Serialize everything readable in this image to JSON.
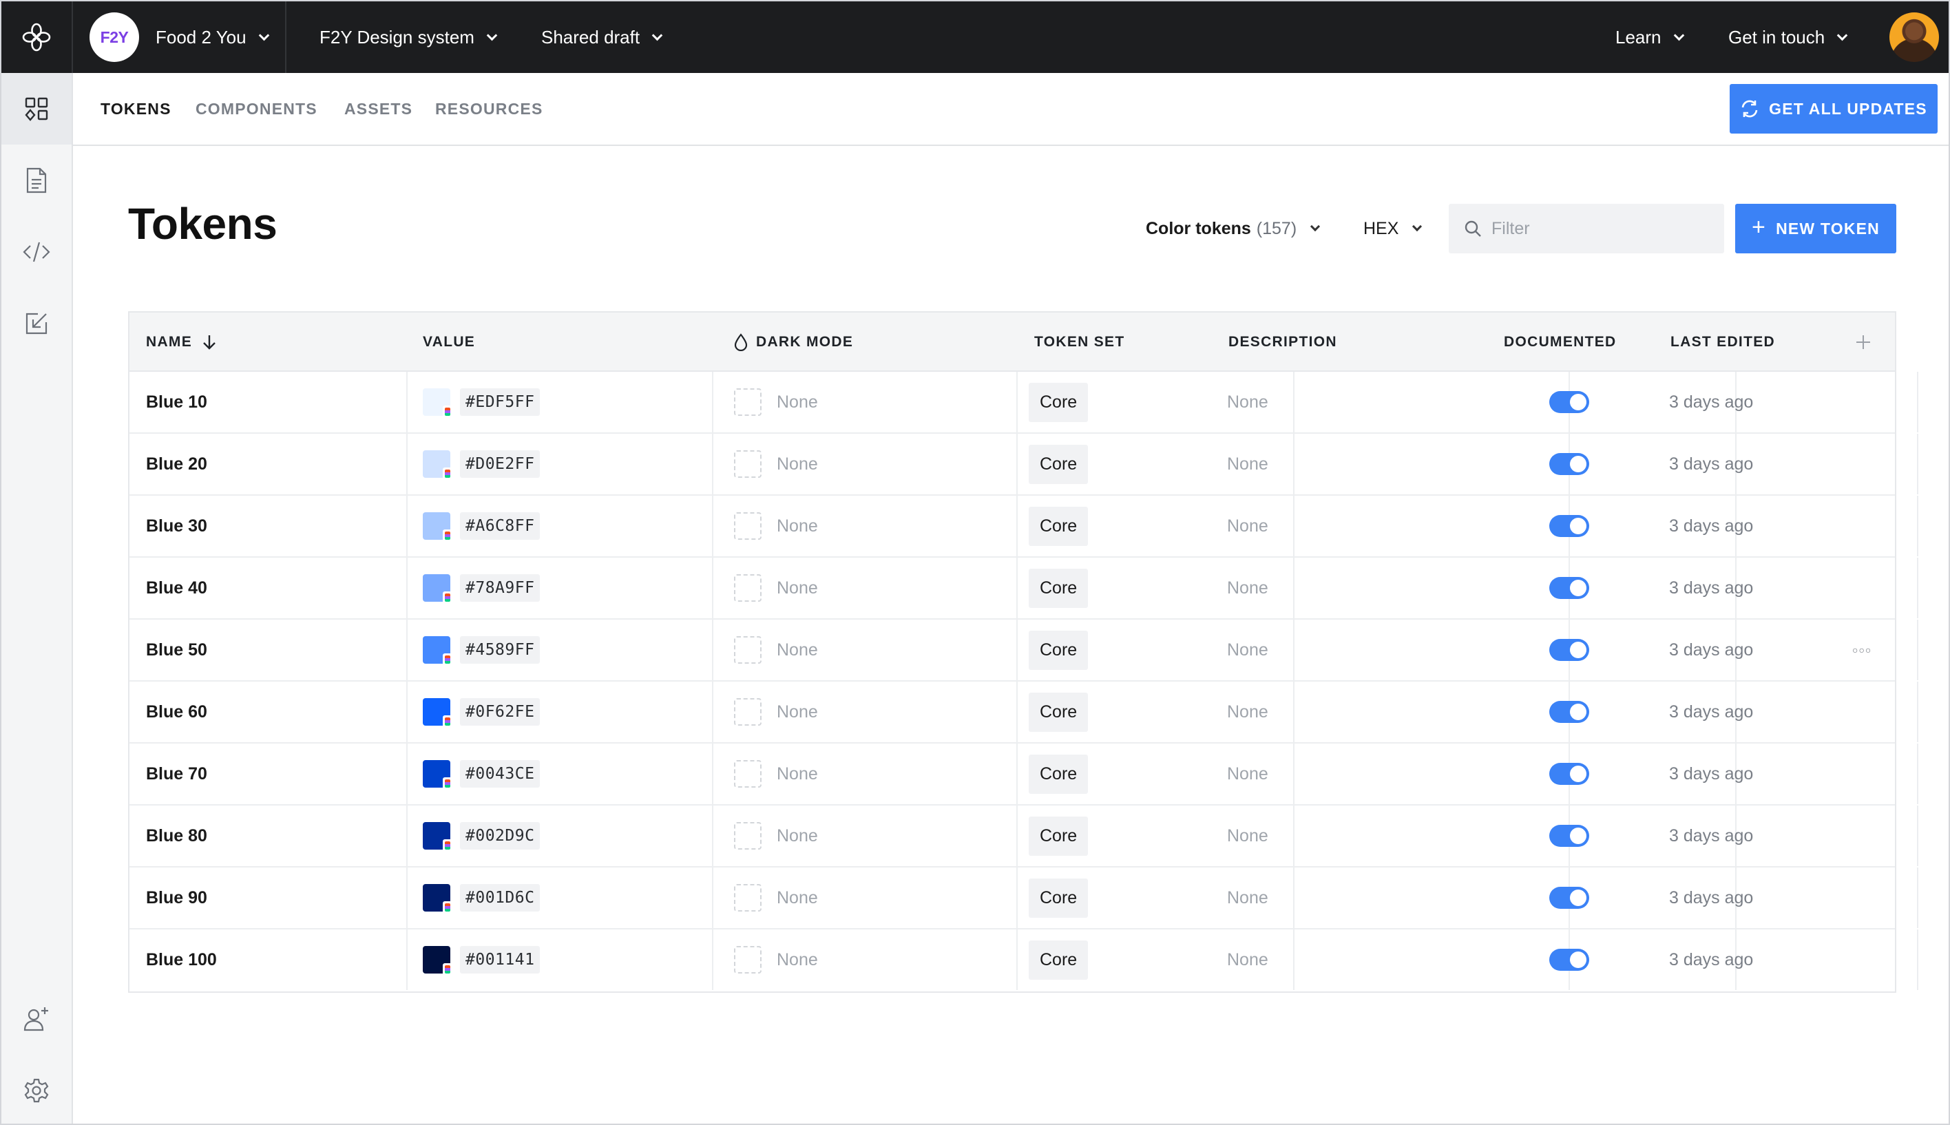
{
  "topbar": {
    "workspace": "Food 2 You",
    "workspace_badge": "F2Y",
    "project": "F2Y Design system",
    "branch": "Shared draft",
    "learn": "Learn",
    "contact": "Get in touch"
  },
  "subnav": {
    "tabs": [
      "TOKENS",
      "COMPONENTS",
      "ASSETS",
      "RESOURCES"
    ],
    "active_tab": "TOKENS",
    "get_updates": "GET ALL UPDATES"
  },
  "main": {
    "title": "Tokens",
    "token_type": "Color tokens",
    "token_count": "(157)",
    "format": "HEX",
    "filter_placeholder": "Filter",
    "new_token": "NEW TOKEN"
  },
  "table": {
    "columns": {
      "name": "NAME",
      "value": "VALUE",
      "dark_mode": "DARK MODE",
      "token_set": "TOKEN SET",
      "description": "DESCRIPTION",
      "documented": "DOCUMENTED",
      "last_edited": "LAST EDITED"
    },
    "rows": [
      {
        "name": "Blue 10",
        "hex": "#EDF5FF",
        "dark_mode": "None",
        "token_set": "Core",
        "description": "None",
        "documented": true,
        "last_edited": "3 days ago"
      },
      {
        "name": "Blue 20",
        "hex": "#D0E2FF",
        "dark_mode": "None",
        "token_set": "Core",
        "description": "None",
        "documented": true,
        "last_edited": "3 days ago"
      },
      {
        "name": "Blue 30",
        "hex": "#A6C8FF",
        "dark_mode": "None",
        "token_set": "Core",
        "description": "None",
        "documented": true,
        "last_edited": "3 days ago"
      },
      {
        "name": "Blue 40",
        "hex": "#78A9FF",
        "dark_mode": "None",
        "token_set": "Core",
        "description": "None",
        "documented": true,
        "last_edited": "3 days ago"
      },
      {
        "name": "Blue 50",
        "hex": "#4589FF",
        "dark_mode": "None",
        "token_set": "Core",
        "description": "None",
        "documented": true,
        "last_edited": "3 days ago",
        "hovered": true
      },
      {
        "name": "Blue 60",
        "hex": "#0F62FE",
        "dark_mode": "None",
        "token_set": "Core",
        "description": "None",
        "documented": true,
        "last_edited": "3 days ago"
      },
      {
        "name": "Blue 70",
        "hex": "#0043CE",
        "dark_mode": "None",
        "token_set": "Core",
        "description": "None",
        "documented": true,
        "last_edited": "3 days ago"
      },
      {
        "name": "Blue 80",
        "hex": "#002D9C",
        "dark_mode": "None",
        "token_set": "Core",
        "description": "None",
        "documented": true,
        "last_edited": "3 days ago"
      },
      {
        "name": "Blue 90",
        "hex": "#001D6C",
        "dark_mode": "None",
        "token_set": "Core",
        "description": "None",
        "documented": true,
        "last_edited": "3 days ago"
      },
      {
        "name": "Blue 100",
        "hex": "#001141",
        "dark_mode": "None",
        "token_set": "Core",
        "description": "None",
        "documented": true,
        "last_edited": "3 days ago"
      }
    ]
  },
  "colors": {
    "accent": "#3B82F6",
    "topbar_bg": "#1C1D1F",
    "brand_badge_text": "#7B3FE4"
  },
  "icons": {
    "app_logo": "flower-logo-icon",
    "rail": [
      "grid-icon",
      "document-icon",
      "code-icon",
      "import-icon",
      "add-user-icon",
      "gear-icon"
    ],
    "updates": "sync-icon",
    "filter": "search-icon",
    "dark_mode": "drop-icon",
    "sort": "arrow-down-icon",
    "add_column": "plus-icon",
    "row_more": "more-icon"
  }
}
